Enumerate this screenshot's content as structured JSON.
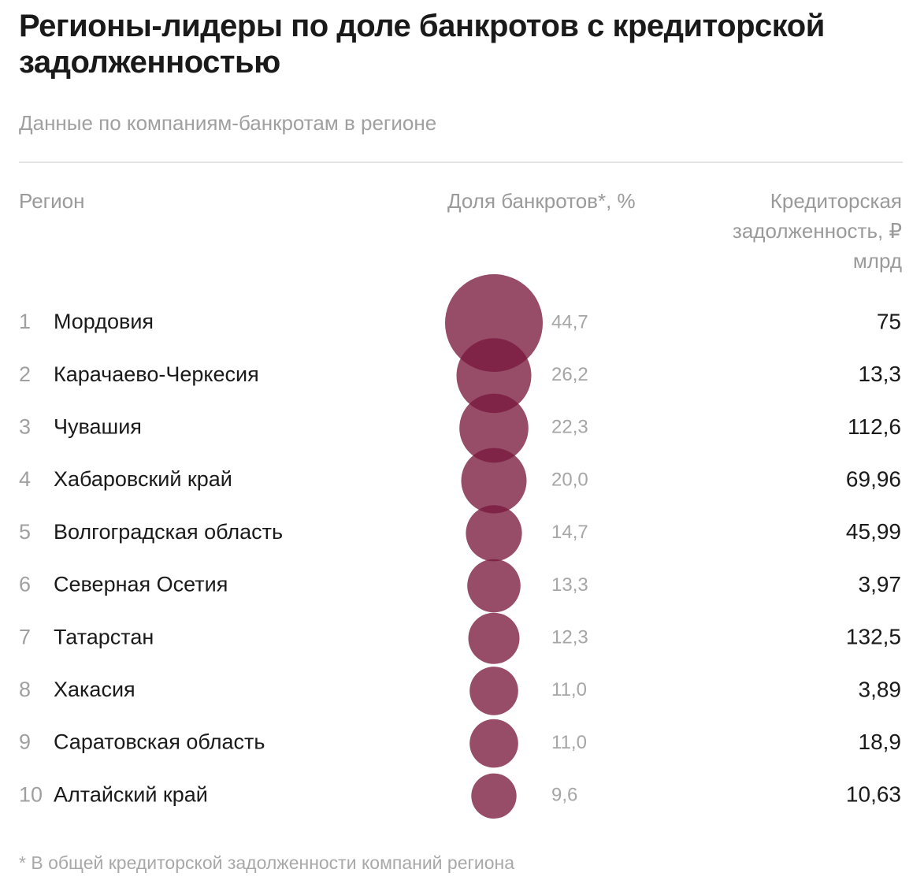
{
  "title": "Регионы-лидеры по доле банкротов с кредиторской задолженностью",
  "subtitle": "Данные по компаниям-банкротам в регионе",
  "columns": {
    "region": "Регион",
    "share": "Доля банкротов*, %",
    "debt": "Кредиторская задолженность, ₽ млрд"
  },
  "footnote": "* В общей кредиторской задолженности компаний региона",
  "colors": {
    "bubble": "#7a1a3e",
    "rank": "#a0a0a0",
    "region": "#1a1a1a",
    "share_value": "#a6a6a6",
    "debt_value": "#1a1a1a"
  },
  "chart_data": {
    "type": "table",
    "bubble_size_by": "share",
    "rows": [
      {
        "rank": "1",
        "region": "Мордовия",
        "share": 44.7,
        "share_label": "44,7",
        "debt": 75,
        "debt_label": "75"
      },
      {
        "rank": "2",
        "region": "Карачаево-Черкесия",
        "share": 26.2,
        "share_label": "26,2",
        "debt": 13.3,
        "debt_label": "13,3"
      },
      {
        "rank": "3",
        "region": "Чувашия",
        "share": 22.3,
        "share_label": "22,3",
        "debt": 112.6,
        "debt_label": "112,6"
      },
      {
        "rank": "4",
        "region": "Хабаровский край",
        "share": 20.0,
        "share_label": "20,0",
        "debt": 69.96,
        "debt_label": "69,96"
      },
      {
        "rank": "5",
        "region": "Волгоградская область",
        "share": 14.7,
        "share_label": "14,7",
        "debt": 45.99,
        "debt_label": "45,99"
      },
      {
        "rank": "6",
        "region": "Северная Осетия",
        "share": 13.3,
        "share_label": "13,3",
        "debt": 3.97,
        "debt_label": "3,97"
      },
      {
        "rank": "7",
        "region": "Татарстан",
        "share": 12.3,
        "share_label": "12,3",
        "debt": 132.5,
        "debt_label": "132,5"
      },
      {
        "rank": "8",
        "region": "Хакасия",
        "share": 11.0,
        "share_label": "11,0",
        "debt": 3.89,
        "debt_label": "3,89"
      },
      {
        "rank": "9",
        "region": "Саратовская область",
        "share": 11.0,
        "share_label": "11,0",
        "debt": 18.9,
        "debt_label": "18,9"
      },
      {
        "rank": "10",
        "region": "Алтайский край",
        "share": 9.6,
        "share_label": "9,6",
        "debt": 10.63,
        "debt_label": "10,63"
      }
    ]
  }
}
